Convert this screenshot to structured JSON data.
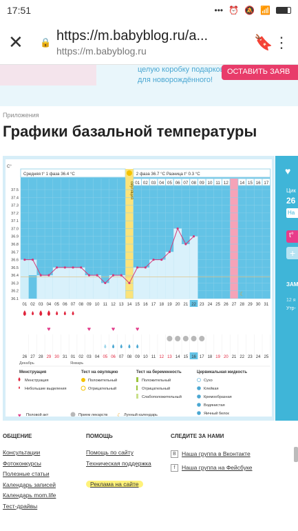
{
  "status": {
    "time": "17:51",
    "icons": [
      "more-icon",
      "alarm-icon",
      "mute-icon",
      "wifi-icon",
      "battery-icon"
    ]
  },
  "browser": {
    "url_main": "https://m.babyblog.ru/a...",
    "url_sub": "https://m.babyblog.ru"
  },
  "banner": {
    "text_line1": "целую коробку подарков",
    "text_line2": "для новорождённого!",
    "button": "ОСТАВИТЬ ЗАЯВ"
  },
  "breadcrumb": "Приложения",
  "page_title": "Графики базальной температуры",
  "chart": {
    "phase1_label": "Средняя t° 1 фаза",
    "phase1_value": "36.4 °C",
    "ovulation_label": "овуляция",
    "phase2_label": "2 фаза",
    "phase2_value": "36.7 °C",
    "diff_label": "Разница t°",
    "diff_value": "0.3 °C",
    "unit": "C°",
    "y_ticks": [
      "37.5",
      "37.4",
      "37.3",
      "37.2",
      "37.1",
      "37.0",
      "36.9",
      "36.8",
      "36.7",
      "36.6",
      "36.5",
      "36.4",
      "36.3",
      "36.2",
      "36.1"
    ],
    "top_days": [
      "01",
      "02",
      "03",
      "04",
      "05",
      "06",
      "07",
      "08",
      "09",
      "10",
      "11",
      "12",
      "13",
      "14",
      "15",
      "16",
      "17"
    ],
    "cycle_days": [
      "01",
      "02",
      "03",
      "04",
      "05",
      "06",
      "07",
      "08",
      "09",
      "10",
      "11",
      "12",
      "13",
      "14",
      "15",
      "16",
      "17",
      "18",
      "19",
      "20",
      "21",
      "22",
      "23",
      "24",
      "25",
      "26",
      "27",
      "28",
      "29",
      "30",
      "31"
    ],
    "dates": [
      "26",
      "27",
      "28",
      "29",
      "30",
      "31",
      "01",
      "02",
      "03",
      "04",
      "05",
      "06",
      "07",
      "08",
      "09",
      "10",
      "11",
      "12",
      "13",
      "14",
      "15",
      "16",
      "17",
      "18",
      "19",
      "20",
      "21",
      "22",
      "23",
      "24",
      "25"
    ],
    "month_dec": "Декабрь",
    "month_jan": "Январь"
  },
  "chart_data": {
    "type": "line",
    "x": [
      1,
      2,
      3,
      4,
      5,
      6,
      7,
      8,
      9,
      10,
      11,
      12,
      13,
      14,
      15,
      16,
      17,
      18,
      19,
      20,
      21,
      22
    ],
    "values": [
      36.6,
      36.6,
      36.4,
      36.4,
      36.5,
      36.5,
      36.5,
      36.5,
      36.4,
      36.4,
      36.3,
      36.4,
      36.4,
      36.3,
      36.5,
      36.5,
      36.6,
      36.6,
      36.7,
      37.0,
      36.8,
      36.9
    ],
    "ylim": [
      36.1,
      37.5
    ],
    "ovulation_day": 14,
    "highlight_day": 27,
    "menstruation_days": [
      1,
      3,
      4
    ],
    "light_bleeding_days": [
      2,
      5,
      6,
      7
    ],
    "intercourse_days": [
      4,
      9,
      12,
      15
    ],
    "ovulation_test_negative_days": [
      11
    ],
    "ovulation_test_positive_days": [
      12,
      13,
      14,
      15
    ],
    "medication_days": [
      19,
      20,
      21,
      22,
      23
    ],
    "moon_day": 28
  },
  "legend": {
    "menstruation_title": "Менструация",
    "menstruation": "Менструация",
    "light_bleeding": "Небольшие выделения",
    "ovtest_title": "Тест на овуляцию",
    "ovtest_pos": "Положительный",
    "ovtest_neg": "Отрицательный",
    "pregtest_title": "Тест на беременность",
    "preg_pos": "Положительный",
    "preg_neg": "Отрицательный",
    "preg_weak": "Слабоположительный",
    "mucus_title": "Цервикальная жидкость",
    "mucus_dry": "Сухо",
    "mucus_sticky": "Клейкая",
    "mucus_creamy": "Кремообразная",
    "mucus_watery": "Водянистая",
    "mucus_egg": "Яичный белок",
    "intercourse": "Половой акт",
    "medication": "Прием лекарств",
    "lunar": "Лунный календарь"
  },
  "side": {
    "line1": "Цик",
    "line2": "26 д",
    "btn": "На",
    "section": "ЗАМ",
    "small1": "12 я",
    "small2": "Утр-"
  },
  "footer": {
    "col1_title": "ОБЩЕНИЕ",
    "col1_links": [
      "Консультации",
      "Фотоконкурсы",
      "Полезные статьи",
      "Календарь записей",
      "Календарь mom.life",
      "Тест-драйвы"
    ],
    "col2_title": "ПОМОЩЬ",
    "col2_links": [
      "Помощь по сайту",
      "Техническая поддержка",
      "Реклама на сайте"
    ],
    "col3_title": "СЛЕДИТЕ ЗА НАМИ",
    "col3_links": [
      "Наша группа в Вконтакте",
      "Наша группа на Фейсбуке"
    ]
  }
}
